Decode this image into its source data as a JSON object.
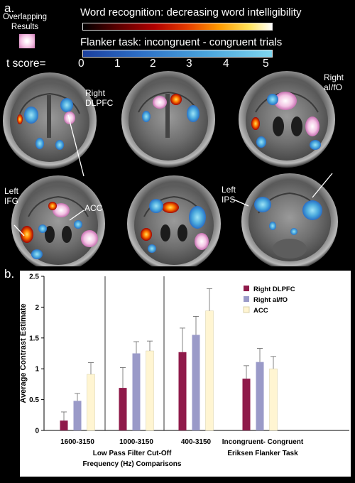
{
  "panel_a_label": "a.",
  "panel_b_label": "b.",
  "overlap_legend": {
    "line1": "Overlapping",
    "line2": "Results"
  },
  "colorbars": {
    "word_title": "Word recognition: decreasing word intelligibility",
    "flanker_title": "Flanker task: incongruent - congruent trials",
    "tscore_label": "t score=",
    "ticks": [
      "0",
      "1",
      "2",
      "3",
      "4",
      "5"
    ]
  },
  "brain_labels": {
    "right_dlpfc": [
      "Right",
      "DLPFC"
    ],
    "right_aifo": [
      "Right",
      "aI/fO"
    ],
    "left_ifg": [
      "Left",
      "IFG"
    ],
    "acc": "ACC",
    "left_ips": [
      "Left",
      "IPS"
    ]
  },
  "colors": {
    "right_dlpfc": "#8f1a4a",
    "right_aifo": "#9a9ac8",
    "acc": "#fff5d2"
  },
  "chart_data": {
    "type": "bar",
    "ylabel": "Average Contrast Estimate",
    "xlabel": [
      "Low Pass Filter Cut-Off",
      "Frequency (Hz) Comparisons"
    ],
    "ylim": [
      0,
      2.5
    ],
    "yticks": [
      "0",
      "0.5",
      "1",
      "1.5",
      "2",
      "2.5"
    ],
    "categories": [
      "1600-3150",
      "1000-3150",
      "400-3150",
      "Incongruent- Congruent"
    ],
    "category_sublabel": {
      "3": "Eriksen Flanker Task"
    },
    "series": [
      {
        "name": "Right DLPFC",
        "values": [
          0.16,
          0.69,
          1.27,
          0.84
        ],
        "errors": [
          0.14,
          0.33,
          0.39,
          0.21
        ]
      },
      {
        "name": "Right aI/fO",
        "values": [
          0.48,
          1.25,
          1.55,
          1.11
        ],
        "errors": [
          0.12,
          0.19,
          0.3,
          0.22
        ]
      },
      {
        "name": "ACC",
        "values": [
          0.91,
          1.29,
          1.94,
          1.0
        ],
        "errors": [
          0.19,
          0.16,
          0.36,
          0.2
        ]
      }
    ],
    "legend_position": "top-right",
    "grid": false
  }
}
